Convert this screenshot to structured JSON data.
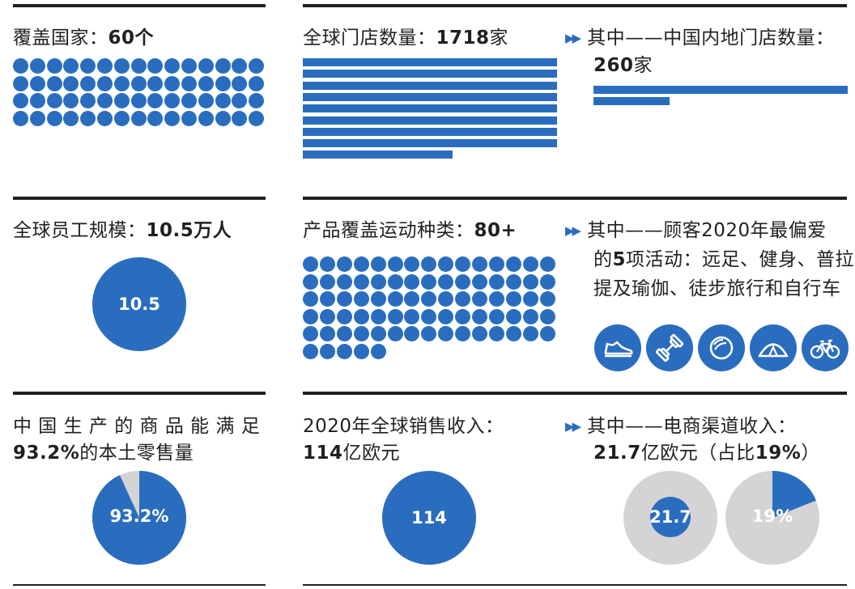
{
  "row1": {
    "countries": {
      "label": "覆盖国家：",
      "value": "60个",
      "count": 60
    },
    "stores": {
      "label": "全球门店数量：",
      "value": "1718",
      "unit": "家",
      "count": 1718
    },
    "china_stores": {
      "prefix": "其中——中国内地门店数量：",
      "value": "260",
      "unit": "家",
      "count": 260
    }
  },
  "row2": {
    "employees": {
      "label": "全球员工规模：",
      "value": "10.5万人",
      "circle_value": "10.5"
    },
    "sports": {
      "label": "产品覆盖运动种类：",
      "value": "80+",
      "count": 80
    },
    "favorites": {
      "line1": "其中——顾客2020年最偏爱",
      "line2_pre": "的",
      "line2_bold": "5",
      "line2_post": "项活动：远足、健身、普拉",
      "line3": "提及瑜伽、徒步旅行和自行车",
      "icons": [
        "shoe-icon",
        "dumbbell-icon",
        "pilates-ball-icon",
        "tent-icon",
        "bicycle-icon"
      ]
    }
  },
  "row3": {
    "local": {
      "line1": "中 国 生 产 的 商 品 能 满 足",
      "line2_bold": "93.2%",
      "line2_post": "的本土零售量",
      "pie_label": "93.2%",
      "share": 0.932
    },
    "sales": {
      "line1": "2020年全球销售收入：",
      "line2_bold": "114",
      "line2_post": "亿欧元",
      "circle_value": "114"
    },
    "ecom": {
      "line1": "其中——电商渠道收入：",
      "line2_bold": "21.7",
      "line2_mid": "亿欧元（占比",
      "line2_bold2": "19%",
      "line2_end": "）",
      "circle_value": "21.7",
      "pie_label": "19%",
      "share": 0.19
    }
  },
  "colors": {
    "blue": "#2a6dbf",
    "grey": "#d4d4d4",
    "rule": "#231f20"
  }
}
